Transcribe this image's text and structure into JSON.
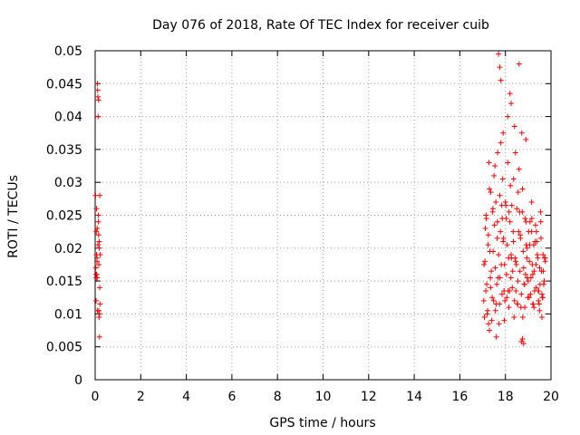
{
  "chart_data": {
    "type": "scatter",
    "title": "Day 076 of 2018, Rate Of TEC Index for receiver cuib",
    "xlabel": "GPS time / hours",
    "ylabel": "ROTI / TECUs",
    "xlim": [
      0,
      20
    ],
    "ylim": [
      0,
      0.05
    ],
    "xticks": [
      "0",
      "2",
      "4",
      "6",
      "8",
      "10",
      "12",
      "14",
      "16",
      "18",
      "20"
    ],
    "yticks": [
      "0",
      "0.005",
      "0.01",
      "0.015",
      "0.02",
      "0.025",
      "0.03",
      "0.035",
      "0.04",
      "0.045",
      "0.05"
    ],
    "grid": true,
    "marker": "+",
    "color": "#ff0000",
    "series": [
      {
        "name": "ROTI",
        "x": [
          0.02,
          0.04,
          0.06,
          0.08,
          0.1,
          0.12,
          0.14,
          0.16,
          0.18,
          0.2,
          0.03,
          0.05,
          0.07,
          0.09,
          0.11,
          0.13,
          0.15,
          0.17,
          0.19,
          0.21,
          0.04,
          0.08,
          0.12,
          0.16,
          0.2,
          0.1,
          0.14,
          0.18,
          0.06,
          0.22,
          0.05,
          0.15,
          0.09,
          0.19,
          17.05,
          17.1,
          17.15,
          17.2,
          17.25,
          17.3,
          17.35,
          17.4,
          17.45,
          17.5,
          17.55,
          17.6,
          17.65,
          17.7,
          17.75,
          17.8,
          17.85,
          17.9,
          17.95,
          18.0,
          18.05,
          18.1,
          18.15,
          18.2,
          18.25,
          18.3,
          18.35,
          18.4,
          18.45,
          18.5,
          18.55,
          18.6,
          18.65,
          18.7,
          18.75,
          18.8,
          18.85,
          18.9,
          18.95,
          19.0,
          19.05,
          19.1,
          19.15,
          19.2,
          19.25,
          19.3,
          19.35,
          19.4,
          19.45,
          19.5,
          19.55,
          19.6,
          19.65,
          19.7,
          19.75,
          17.08,
          17.18,
          17.28,
          17.38,
          17.48,
          17.58,
          17.68,
          17.78,
          17.88,
          17.98,
          18.08,
          18.18,
          18.28,
          18.38,
          18.48,
          18.58,
          18.68,
          18.78,
          18.88,
          18.98,
          19.08,
          19.18,
          19.28,
          19.38,
          19.48,
          19.58,
          19.68,
          17.12,
          17.22,
          17.32,
          17.42,
          17.52,
          17.62,
          17.72,
          17.82,
          17.92,
          18.02,
          18.12,
          18.22,
          18.32,
          18.42,
          18.52,
          18.62,
          18.72,
          18.82,
          18.92,
          19.02,
          19.12,
          19.22,
          19.32,
          19.42,
          19.52,
          19.62,
          19.72,
          17.06,
          17.16,
          17.26,
          17.36,
          17.46,
          17.56,
          17.66,
          17.76,
          17.86,
          17.96,
          18.06,
          18.16,
          18.26,
          18.36,
          18.46,
          18.56,
          18.66,
          18.76,
          18.86,
          18.96,
          19.06,
          19.16,
          19.26,
          19.36,
          19.46,
          19.56,
          19.66,
          17.14,
          17.24,
          17.34,
          17.44,
          17.54,
          17.64,
          17.74,
          17.84,
          17.94,
          18.04,
          18.14,
          18.24,
          18.34,
          18.44,
          18.54,
          18.64,
          18.74,
          18.84,
          18.94,
          19.04,
          19.14,
          19.24,
          19.34,
          19.44,
          19.54,
          19.64,
          19.74,
          17.7,
          17.75,
          17.8,
          18.7,
          18.75,
          18.8,
          18.2,
          18.25,
          18.4,
          19.5,
          19.6,
          17.9,
          18.6,
          18.9,
          17.3,
          17.6,
          18.1,
          19.2
        ],
        "y": [
          0.028,
          0.016,
          0.019,
          0.0185,
          0.045,
          0.043,
          0.025,
          0.0105,
          0.02,
          0.028,
          0.017,
          0.0225,
          0.016,
          0.0155,
          0.044,
          0.04,
          0.022,
          0.0095,
          0.0065,
          0.0115,
          0.012,
          0.018,
          0.0205,
          0.0175,
          0.014,
          0.0105,
          0.024,
          0.021,
          0.026,
          0.019,
          0.0155,
          0.0425,
          0.023,
          0.01,
          0.012,
          0.018,
          0.025,
          0.01,
          0.022,
          0.029,
          0.014,
          0.009,
          0.026,
          0.031,
          0.017,
          0.0115,
          0.024,
          0.019,
          0.028,
          0.036,
          0.013,
          0.021,
          0.009,
          0.027,
          0.016,
          0.033,
          0.011,
          0.024,
          0.019,
          0.014,
          0.021,
          0.012,
          0.018,
          0.026,
          0.015,
          0.032,
          0.022,
          0.013,
          0.029,
          0.017,
          0.011,
          0.024,
          0.02,
          0.015,
          0.018,
          0.013,
          0.027,
          0.016,
          0.011,
          0.021,
          0.014,
          0.019,
          0.012,
          0.017,
          0.024,
          0.013,
          0.019,
          0.015,
          0.018,
          0.0095,
          0.0145,
          0.033,
          0.0165,
          0.012,
          0.027,
          0.0155,
          0.0225,
          0.0305,
          0.012,
          0.0205,
          0.0135,
          0.0265,
          0.0095,
          0.0175,
          0.0225,
          0.011,
          0.0195,
          0.016,
          0.0125,
          0.024,
          0.0175,
          0.0135,
          0.021,
          0.0115,
          0.0165,
          0.0145,
          0.023,
          0.0105,
          0.0195,
          0.0125,
          0.0235,
          0.0145,
          0.0085,
          0.0175,
          0.0215,
          0.0265,
          0.0135,
          0.0295,
          0.0165,
          0.0185,
          0.0115,
          0.0255,
          0.0375,
          0.0145,
          0.0205,
          0.0225,
          0.0155,
          0.0115,
          0.0235,
          0.0185,
          0.0145,
          0.0125,
          0.0185,
          0.0175,
          0.0245,
          0.0085,
          0.0285,
          0.0195,
          0.0105,
          0.0345,
          0.0155,
          0.0245,
          0.0175,
          0.0125,
          0.0255,
          0.0185,
          0.0305,
          0.0135,
          0.0285,
          0.0215,
          0.0095,
          0.0245,
          0.0155,
          0.0205,
          0.0245,
          0.0165,
          0.0225,
          0.0135,
          0.0215,
          0.0165,
          0.0135,
          0.0205,
          0.0155,
          0.0255,
          0.0325,
          0.0215,
          0.0115,
          0.0265,
          0.0135,
          0.0245,
          0.0185,
          0.0155,
          0.0225,
          0.0345,
          0.0115,
          0.0165,
          0.0255,
          0.0145,
          0.0185,
          0.0125,
          0.0225,
          0.0205,
          0.0175,
          0.0135,
          0.0255,
          0.0125,
          0.0185,
          0.0495,
          0.0475,
          0.0455,
          0.0058,
          0.0062,
          0.0055,
          0.0435,
          0.042,
          0.0385,
          0.0105,
          0.0095,
          0.0375,
          0.048,
          0.0365,
          0.0075,
          0.0065,
          0.04,
          0.0115
        ]
      }
    ]
  }
}
